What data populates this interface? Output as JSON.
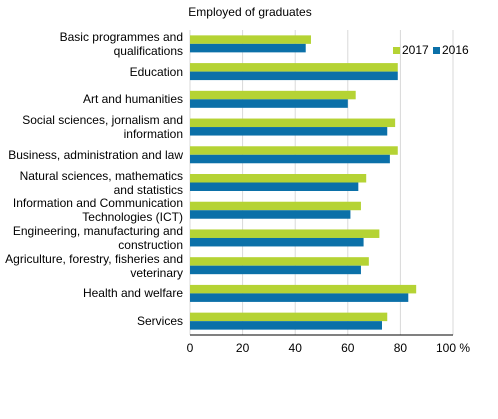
{
  "chart_data": {
    "type": "bar",
    "orientation": "horizontal",
    "title": "Employed of graduates",
    "categories": [
      "Basic programmes and qualifications",
      "Education",
      "Art and humanities",
      "Social sciences, jornalism and information",
      "Business, administration and law",
      "Natural sciences, mathematics and statistics",
      "Information and Communication Technologies (ICT)",
      "Engineering, manufacturing and construction",
      "Agriculture, forestry, fisheries and veterinary",
      "Health and welfare",
      "Services"
    ],
    "series": [
      {
        "name": "2017",
        "color": "#b5d334",
        "values": [
          46,
          79,
          63,
          78,
          79,
          67,
          65,
          72,
          68,
          86,
          75
        ]
      },
      {
        "name": "2016",
        "color": "#0b70a8",
        "values": [
          44,
          79,
          60,
          75,
          76,
          64,
          61,
          66,
          65,
          83,
          73
        ]
      }
    ],
    "xlim": [
      0,
      100
    ],
    "xticks": [
      0,
      20,
      40,
      60,
      80,
      {
        "value": 100,
        "label": "100 %"
      }
    ],
    "grid": true,
    "legend": "upper right"
  }
}
